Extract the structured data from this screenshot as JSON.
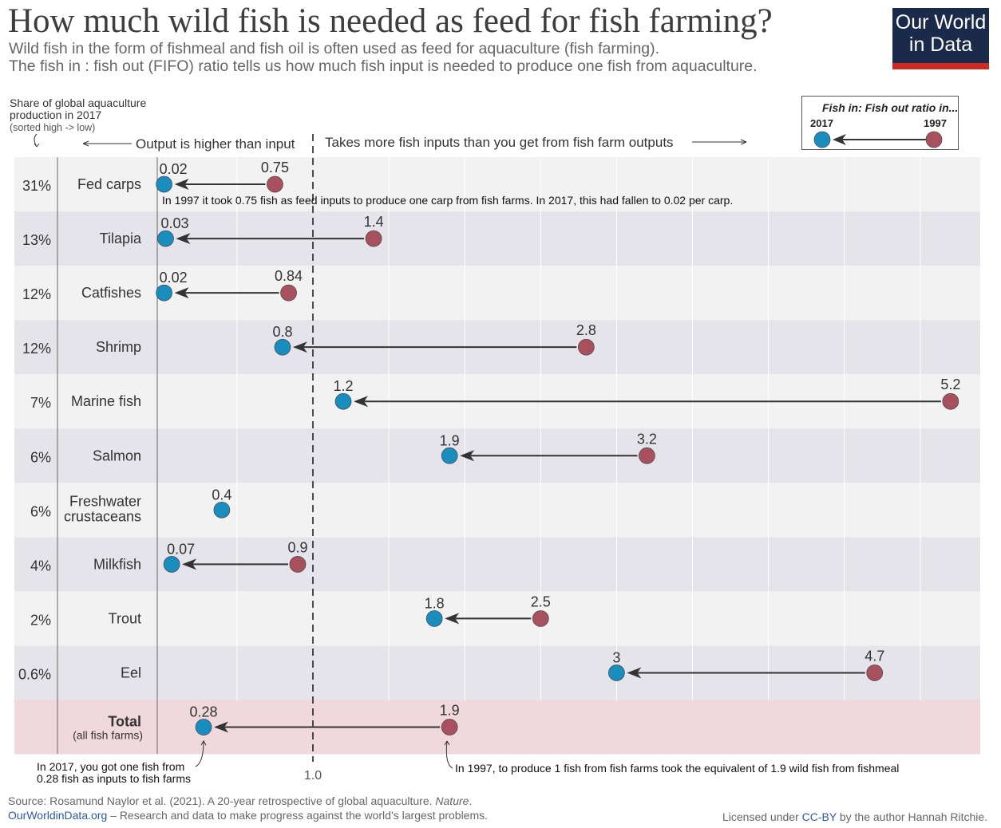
{
  "header": {
    "title": "How much wild fish is needed as feed for fish farming?",
    "subtitle_1": "Wild fish in the form of fishmeal and fish oil is often used as feed for aquaculture (fish farming).",
    "subtitle_2": "The fish in : fish out (FIFO) ratio tells us how much fish input is needed to produce one fish from aquaculture.",
    "logo_line1": "Our World",
    "logo_line2": "in Data"
  },
  "legend": {
    "title": "Fish in: Fish out ratio in...",
    "label_2017": "2017",
    "label_1997": "1997"
  },
  "colors": {
    "y2017": "#1a8dbf",
    "y1997": "#a8505d",
    "row_light": "#f2f2f2",
    "row_dark": "#e5e4ea",
    "row_total": "#efd9dd"
  },
  "chart_data": {
    "type": "dumbbell",
    "share_header": "Share of global aquaculture",
    "share_header_2": "production in 2017",
    "share_note": "(sorted high -> low)",
    "left_note": "Output is higher than input",
    "right_note": "Takes more fish inputs than you get from fish farm outputs",
    "reference_label": "1.0",
    "reference_value": 1.0,
    "xlim": [
      0,
      5.2
    ],
    "rows": [
      {
        "share": "31%",
        "name": "Fed carps",
        "v2017": 0.02,
        "v1997": 0.75,
        "l2017": "0.02",
        "l1997": "0.75"
      },
      {
        "share": "13%",
        "name": "Tilapia",
        "v2017": 0.03,
        "v1997": 1.4,
        "l2017": "0.03",
        "l1997": "1.4"
      },
      {
        "share": "12%",
        "name": "Catfishes",
        "v2017": 0.02,
        "v1997": 0.84,
        "l2017": "0.02",
        "l1997": "0.84"
      },
      {
        "share": "12%",
        "name": "Shrimp",
        "v2017": 0.8,
        "v1997": 2.8,
        "l2017": "0.8",
        "l1997": "2.8"
      },
      {
        "share": "7%",
        "name": "Marine fish",
        "v2017": 1.2,
        "v1997": 5.2,
        "l2017": "1.2",
        "l1997": "5.2"
      },
      {
        "share": "6%",
        "name": "Salmon",
        "v2017": 1.9,
        "v1997": 3.2,
        "l2017": "1.9",
        "l1997": "3.2"
      },
      {
        "share": "6%",
        "name": "Freshwater",
        "name2": "crustaceans",
        "v2017": 0.4,
        "v1997": null,
        "l2017": "0.4",
        "l1997": ""
      },
      {
        "share": "4%",
        "name": "Milkfish",
        "v2017": 0.07,
        "v1997": 0.9,
        "l2017": "0.07",
        "l1997": "0.9"
      },
      {
        "share": "2%",
        "name": "Trout",
        "v2017": 1.8,
        "v1997": 2.5,
        "l2017": "1.8",
        "l1997": "2.5"
      },
      {
        "share": "0.6%",
        "name": "Eel",
        "v2017": 3,
        "v1997": 4.7,
        "l2017": "3",
        "l1997": "4.7"
      },
      {
        "share": "",
        "name": "Total",
        "name2": "(all fish farms)",
        "v2017": 0.28,
        "v1997": 1.9,
        "l2017": "0.28",
        "l1997": "1.9",
        "total": true
      }
    ],
    "annotations": {
      "carp": "In 1997 it took 0.75 fish as feed inputs to produce one carp from fish farms. In 2017, this had fallen to 0.02 per carp.",
      "total_2017_1": "In 2017, you got one fish from",
      "total_2017_2": "0.28 fish as inputs to fish farms",
      "total_1997": "In 1997, to produce 1 fish from fish farms took the equivalent of 1.9 wild fish from fishmeal"
    }
  },
  "footer": {
    "source": "Source: Rosamund Naylor et al. (2021). A 20-year retrospective of global aquaculture. ",
    "source_journal": "Nature",
    "source_end": ".",
    "site": "OurWorldinData.org",
    "tagline": " – Research and data to make progress against the world’s largest problems.",
    "license_pre": "Licensed under ",
    "license": "CC-BY",
    "license_post": " by the author Hannah Ritchie."
  }
}
